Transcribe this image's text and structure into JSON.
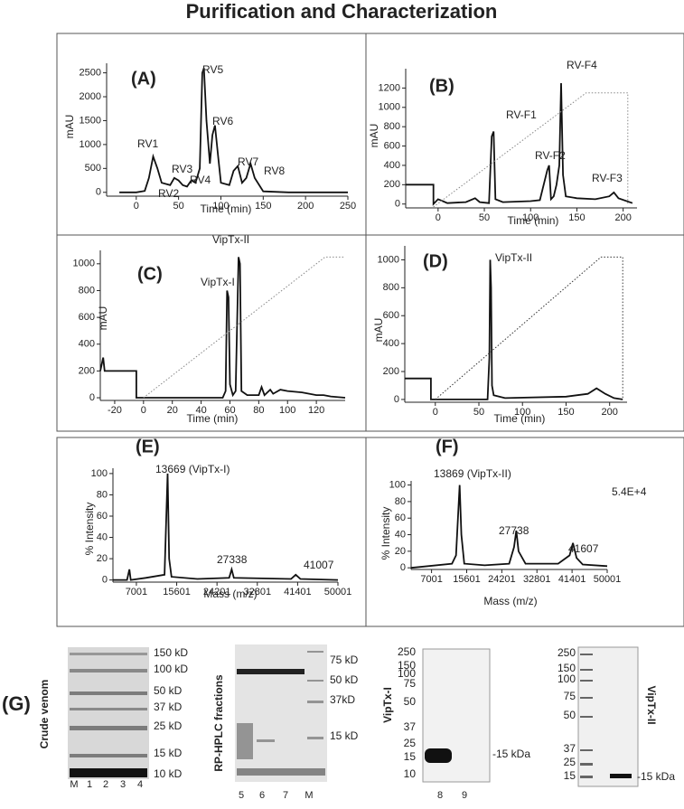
{
  "title": "Purification and Characterization",
  "chart_data": [
    {
      "type": "line",
      "panel": "(A)",
      "ylabel": "mAU",
      "xlabel": "Time (min)",
      "xlim": [
        -35,
        250
      ],
      "ylim": [
        -80,
        2700
      ],
      "xticks": [
        0,
        50,
        100,
        150,
        200,
        250
      ],
      "yticks": [
        0,
        500,
        1000,
        1500,
        2000,
        2500
      ],
      "annotations": [
        "RV1",
        "RV2",
        "RV3",
        "RV4",
        "RV5",
        "RV6",
        "RV7",
        "RV8"
      ],
      "series": [
        {
          "color": "#111",
          "style": "solid",
          "x": [
            -20,
            0,
            10,
            15,
            20,
            25,
            30,
            40,
            45,
            50,
            55,
            60,
            65,
            70,
            75,
            78,
            80,
            83,
            87,
            90,
            93,
            97,
            100,
            110,
            115,
            120,
            125,
            130,
            135,
            140,
            150,
            180,
            250
          ],
          "values": [
            0,
            0,
            30,
            300,
            750,
            500,
            200,
            150,
            300,
            250,
            150,
            120,
            250,
            200,
            500,
            2500,
            2600,
            1500,
            600,
            1200,
            1400,
            700,
            200,
            150,
            450,
            550,
            200,
            300,
            600,
            300,
            20,
            0,
            0
          ]
        }
      ]
    },
    {
      "type": "line",
      "panel": "(B)",
      "ylabel": "mAU",
      "xlabel": "Time (min)",
      "xlim": [
        -35,
        215
      ],
      "ylim": [
        -40,
        1400
      ],
      "xticks": [
        0,
        50,
        100,
        150,
        200
      ],
      "yticks": [
        0,
        200,
        400,
        600,
        800,
        1000,
        1200
      ],
      "annotations": [
        "RV-F1",
        "RV-F2",
        "RV-F3",
        "RV-F4"
      ],
      "series": [
        {
          "color": "#111",
          "style": "solid",
          "x": [
            -35,
            -5,
            -5,
            0,
            5,
            10,
            30,
            40,
            45,
            55,
            58,
            60,
            62,
            70,
            100,
            110,
            118,
            120,
            122,
            125,
            128,
            131,
            133,
            135,
            138,
            150,
            170,
            185,
            190,
            195,
            210
          ],
          "values": [
            200,
            200,
            0,
            50,
            30,
            10,
            20,
            60,
            20,
            10,
            700,
            750,
            50,
            20,
            30,
            40,
            350,
            400,
            50,
            80,
            200,
            400,
            1250,
            300,
            80,
            60,
            50,
            80,
            120,
            60,
            10
          ]
        },
        {
          "color": "#888",
          "style": "dotted",
          "x": [
            -5,
            160,
            205,
            205
          ],
          "values": [
            -30,
            1150,
            1150,
            0
          ]
        }
      ]
    },
    {
      "type": "line",
      "panel": "(C)",
      "ylabel": "mAU",
      "xlabel": "Time (min)",
      "xlim": [
        -30,
        140
      ],
      "ylim": [
        -20,
        1100
      ],
      "xticks": [
        -20,
        0,
        20,
        40,
        60,
        80,
        100,
        120
      ],
      "yticks": [
        0,
        200,
        400,
        600,
        800,
        1000
      ],
      "annotations": [
        "VipTx-I",
        "VipTx-II"
      ],
      "series": [
        {
          "color": "#111",
          "style": "solid",
          "x": [
            -30,
            -28,
            -27,
            -5,
            -5,
            55,
            57,
            58,
            59,
            60,
            62,
            64,
            66,
            67,
            68,
            72,
            80,
            82,
            84,
            88,
            90,
            95,
            100,
            110,
            120,
            125,
            130,
            140
          ],
          "values": [
            200,
            300,
            200,
            200,
            0,
            0,
            50,
            800,
            750,
            100,
            20,
            50,
            1050,
            1000,
            50,
            20,
            20,
            80,
            20,
            60,
            30,
            60,
            50,
            40,
            20,
            20,
            10,
            0
          ]
        },
        {
          "color": "#888",
          "style": "dotted",
          "x": [
            0,
            126,
            140
          ],
          "values": [
            0,
            1050,
            1050
          ]
        }
      ]
    },
    {
      "type": "line",
      "panel": "(D)",
      "ylabel": "mAU",
      "xlabel": "Time (min)",
      "xlim": [
        -35,
        220
      ],
      "ylim": [
        -20,
        1100
      ],
      "xticks": [
        0,
        50,
        100,
        150,
        200
      ],
      "yticks": [
        0,
        200,
        400,
        600,
        800,
        1000
      ],
      "annotations": [
        "VipTx-II"
      ],
      "series": [
        {
          "color": "#111",
          "style": "solid",
          "x": [
            -35,
            -5,
            -5,
            30,
            60,
            62,
            63,
            64,
            65,
            67,
            80,
            150,
            175,
            185,
            195,
            205,
            215
          ],
          "values": [
            150,
            150,
            0,
            0,
            0,
            300,
            1000,
            800,
            100,
            30,
            10,
            20,
            40,
            80,
            40,
            10,
            0
          ]
        },
        {
          "color": "#333",
          "style": "dotted",
          "x": [
            0,
            190,
            215,
            215
          ],
          "values": [
            0,
            1020,
            1020,
            0
          ]
        }
      ]
    },
    {
      "type": "line",
      "panel": "(E)",
      "ylabel": "% Intensity",
      "xlabel": "Mass (m/z)",
      "xlim": [
        2000,
        50001
      ],
      "ylim": [
        -2,
        105
      ],
      "xticks": [
        7001,
        15601,
        24201,
        32801,
        41401,
        50001
      ],
      "yticks": [
        0,
        20,
        40,
        60,
        80,
        100
      ],
      "annotations": [
        "13669 (VipTx-I)",
        "27338",
        "41007"
      ],
      "series": [
        {
          "color": "#111",
          "style": "solid",
          "x": [
            2000,
            5000,
            5500,
            5800,
            9000,
            13000,
            13669,
            14000,
            14500,
            20000,
            26800,
            27338,
            27800,
            40000,
            41007,
            42000,
            50001
          ],
          "values": [
            0,
            0,
            10,
            0,
            2,
            5,
            100,
            20,
            3,
            1,
            2,
            10,
            2,
            1,
            5,
            1,
            0
          ]
        }
      ]
    },
    {
      "type": "line",
      "panel": "(F)",
      "ylabel": "% Intensity",
      "xlabel": "Mass (m/z)",
      "xlim": [
        2000,
        50001
      ],
      "ylim": [
        -2,
        105
      ],
      "xticks": [
        7001,
        15601,
        24201,
        32801,
        41401,
        50001
      ],
      "yticks": [
        0,
        20,
        40,
        60,
        80,
        100
      ],
      "annotations": [
        "13869 (VipTx-II)",
        "27738",
        "41607",
        "5.4E+4"
      ],
      "series": [
        {
          "color": "#111",
          "style": "solid",
          "x": [
            2000,
            12000,
            13000,
            13869,
            14300,
            15000,
            20000,
            26000,
            27200,
            27738,
            28300,
            30000,
            38000,
            40800,
            41607,
            42500,
            44000,
            50001
          ],
          "values": [
            0,
            5,
            15,
            100,
            40,
            5,
            3,
            5,
            25,
            45,
            20,
            5,
            5,
            15,
            30,
            12,
            4,
            2
          ]
        }
      ]
    }
  ],
  "gels": {
    "panel": "(G)",
    "items": [
      {
        "label": "Crude venom",
        "markers": [
          "150 kD",
          "100 kD",
          "50 kD",
          "37 kD",
          "25 kD",
          "15 kD",
          "10 kD"
        ],
        "lanes": [
          "M",
          "1",
          "2",
          "3",
          "4"
        ]
      },
      {
        "label": "RP-HPLC fractions",
        "markers": [
          "75 kD",
          "50 kD",
          "37kD",
          "15 kD"
        ],
        "lanes": [
          "5",
          "6",
          "7",
          "M"
        ]
      },
      {
        "label": "VipTx-I",
        "markers": [
          "250",
          "150",
          "100",
          "75",
          "50",
          "37",
          "25",
          "15",
          "10"
        ],
        "lanes": [
          "8",
          "9"
        ],
        "band": "-15 kDa"
      },
      {
        "label": "VipTx-II",
        "markers": [
          "250",
          "150",
          "100",
          "75",
          "50",
          "37",
          "25",
          "15"
        ],
        "lanes": [],
        "band": "-15 kDa"
      }
    ]
  }
}
